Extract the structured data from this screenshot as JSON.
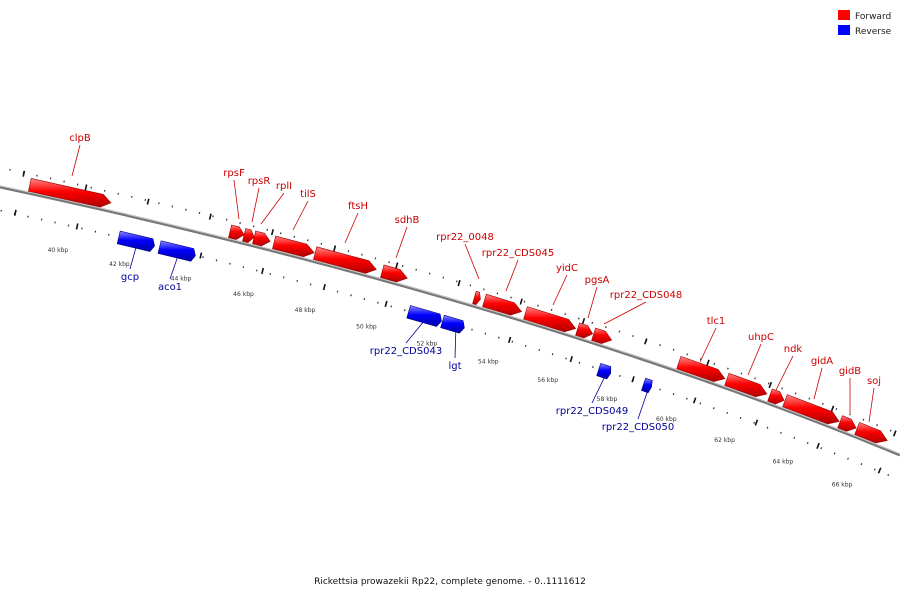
{
  "caption": "Rickettsia prowazekii Rp22, complete genome. - 0..1111612",
  "legend": [
    {
      "label": "Forward",
      "color": "#ff0000"
    },
    {
      "label": "Reverse",
      "color": "#0000ff"
    }
  ],
  "colors": {
    "forward": "#ff0000",
    "reverse": "#0000ff",
    "label_forward": "#cc0000",
    "label_reverse": "#000099"
  },
  "scale": {
    "unit": "kbp",
    "labels": [
      "40 kbp",
      "42 kbp",
      "44 kbp",
      "46 kbp",
      "48 kbp",
      "50 kbp",
      "52 kbp",
      "54 kbp",
      "56 kbp",
      "58 kbp",
      "60 kbp",
      "62 kbp",
      "64 kbp",
      "66 kbp"
    ]
  },
  "genes": [
    {
      "name": "clpB",
      "strand": "forward"
    },
    {
      "name": "rpsF",
      "strand": "forward"
    },
    {
      "name": "rpsR",
      "strand": "forward"
    },
    {
      "name": "rplI",
      "strand": "forward"
    },
    {
      "name": "tilS",
      "strand": "forward"
    },
    {
      "name": "ftsH",
      "strand": "forward"
    },
    {
      "name": "sdhB",
      "strand": "forward"
    },
    {
      "name": "rpr22_0048",
      "strand": "forward"
    },
    {
      "name": "rpr22_CDS045",
      "strand": "forward"
    },
    {
      "name": "yidC",
      "strand": "forward"
    },
    {
      "name": "pgsA",
      "strand": "forward"
    },
    {
      "name": "rpr22_CDS048",
      "strand": "forward"
    },
    {
      "name": "tlc1",
      "strand": "forward"
    },
    {
      "name": "uhpC",
      "strand": "forward"
    },
    {
      "name": "ndk",
      "strand": "forward"
    },
    {
      "name": "gidA",
      "strand": "forward"
    },
    {
      "name": "gidB",
      "strand": "forward"
    },
    {
      "name": "soj",
      "strand": "forward"
    },
    {
      "name": "gcp",
      "strand": "reverse"
    },
    {
      "name": "aco1",
      "strand": "reverse"
    },
    {
      "name": "rpr22_CDS043",
      "strand": "reverse"
    },
    {
      "name": "lgt",
      "strand": "reverse"
    },
    {
      "name": "rpr22_CDS049",
      "strand": "reverse"
    },
    {
      "name": "rpr22_CDS050",
      "strand": "reverse"
    }
  ]
}
